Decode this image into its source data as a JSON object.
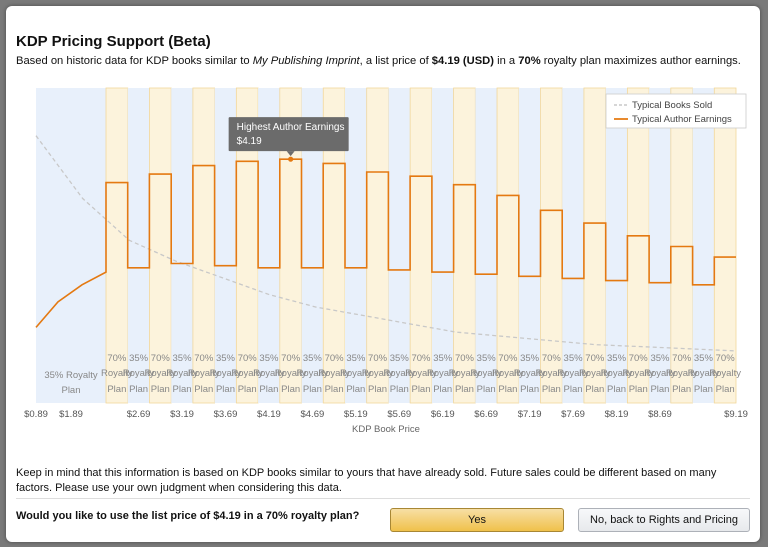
{
  "dialog": {
    "title": "KDP Pricing Support (Beta)",
    "subtitle": {
      "part1": "Based on historic data for KDP books similar to ",
      "imprint": "My Publishing Imprint",
      "part2": ", a list price of ",
      "price": "$4.19 (USD)",
      "part3": " in a ",
      "plan": "70%",
      "part4": " royalty plan maximizes author earnings."
    },
    "note": "Keep in mind that this information is based on KDP books similar to yours that have already sold. Future sales could be different based on many factors. Please use your own judgment when considering this data.",
    "question": "Would you like to use the list price of $4.19 in a 70% royalty plan?",
    "yes_label": "Yes",
    "no_label": "No, back to Rights and Pricing"
  },
  "chart_data": {
    "type": "line",
    "xlabel": "KDP Book Price",
    "x_ticks": [
      "$0.89",
      "$1.89",
      "$2.69",
      "$3.19",
      "$3.69",
      "$4.19",
      "$4.69",
      "$5.19",
      "$5.69",
      "$6.19",
      "$6.69",
      "$7.19",
      "$7.69",
      "$8.19",
      "$8.69",
      "$9.19"
    ],
    "legend": {
      "position": "top-right"
    },
    "series": [
      {
        "name": "Typical Books Sold",
        "color": "#c8c8c8",
        "style": "dashed",
        "values": [
          100,
          74,
          54,
          44,
          36,
          28,
          22,
          18,
          14,
          10,
          8,
          6,
          4,
          3,
          2,
          1
        ]
      },
      {
        "name": "Typical Author Earnings",
        "color": "#e47911",
        "style": "solid",
        "values": [
          {
            "x": 0.89,
            "y": 12
          },
          {
            "x": 1.89,
            "y": 33
          },
          {
            "x": 2.69,
            "y": 80
          },
          {
            "x": 3.19,
            "y": 84
          },
          {
            "x": 3.69,
            "y": 88
          },
          {
            "x": 4.19,
            "y": 100
          },
          {
            "x": 4.69,
            "y": 93
          },
          {
            "x": 5.19,
            "y": 88
          },
          {
            "x": 5.69,
            "y": 82
          },
          {
            "x": 6.19,
            "y": 76
          },
          {
            "x": 6.69,
            "y": 71
          },
          {
            "x": 7.19,
            "y": 65
          },
          {
            "x": 7.69,
            "y": 60
          },
          {
            "x": 8.19,
            "y": 55
          },
          {
            "x": 8.69,
            "y": 50
          },
          {
            "x": 9.19,
            "y": 46
          }
        ]
      }
    ],
    "earnings_steps": {
      "plan70": [
        80,
        84,
        88,
        90,
        91,
        89,
        85,
        83,
        79,
        74,
        67,
        61,
        55,
        50,
        45
      ],
      "plan35": [
        40,
        42,
        41,
        40,
        40,
        40,
        39,
        38,
        37,
        36,
        35,
        34,
        33,
        32,
        31
      ]
    },
    "band_labels": {
      "first": [
        "35% Royalty",
        "Plan"
      ],
      "plan70": [
        "70%",
        "Royalty",
        "Plan"
      ],
      "plan35": [
        "35%",
        "Royalty",
        "Plan"
      ]
    },
    "tooltip": {
      "title": "Highest Author Earnings",
      "value": "$4.19"
    },
    "colors": {
      "band35": "#e8f0fb",
      "band70": "#fcf3dc",
      "band_border": "#f1d79c",
      "tooltip_bg": "#6b6b6b"
    }
  }
}
